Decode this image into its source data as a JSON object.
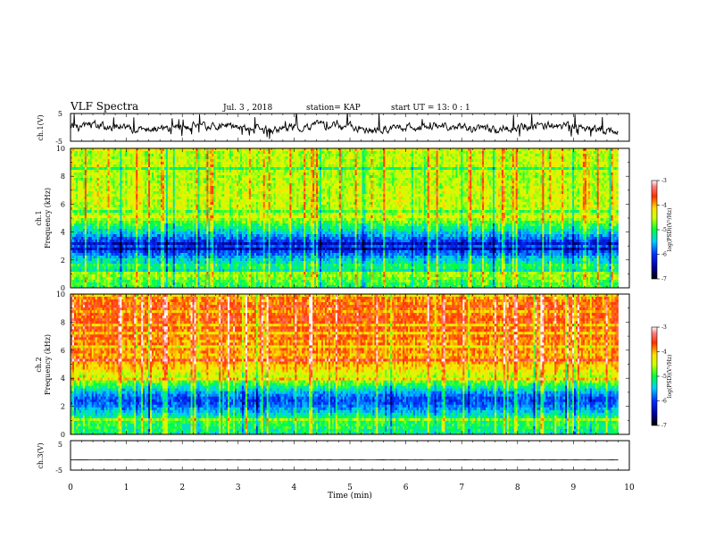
{
  "header": {
    "title": "VLF Spectra",
    "date": "Jul. 3 , 2018",
    "station": "station= KAP",
    "start": "start UT = 13: 0 : 1"
  },
  "chart_data": [
    {
      "type": "line",
      "name": "ch1-waveform",
      "ylabel": "ch.1(V)",
      "ylim": [
        -5,
        5
      ],
      "yticks": [
        "5",
        "-5"
      ],
      "xlim": [
        0,
        10
      ]
    },
    {
      "type": "heatmap",
      "name": "ch1-spectrogram",
      "ylabel": "ch.1\nFrequency (kHz)",
      "ylim": [
        0,
        10
      ],
      "yticks": [
        "10",
        "8",
        "6",
        "4",
        "2",
        "0"
      ],
      "xlim": [
        0,
        10
      ],
      "data_end_min": 9.8,
      "colorbar": {
        "label": "log(PSD)(V²/Hz)",
        "range": [
          -7,
          -3
        ],
        "ticks": [
          "-3",
          "-4",
          "-5",
          "-6",
          "-7"
        ]
      },
      "profile_log_psd": [
        {
          "f": 0.2,
          "v": -5.0
        },
        {
          "f": 0.6,
          "v": -4.8
        },
        {
          "f": 1.0,
          "v": -4.6
        },
        {
          "f": 1.5,
          "v": -5.2
        },
        {
          "f": 2.0,
          "v": -5.4
        },
        {
          "f": 2.5,
          "v": -5.9
        },
        {
          "f": 3.0,
          "v": -6.3
        },
        {
          "f": 3.5,
          "v": -5.9
        },
        {
          "f": 4.0,
          "v": -5.4
        },
        {
          "f": 4.5,
          "v": -5.0
        },
        {
          "f": 5.0,
          "v": -4.6
        },
        {
          "f": 6.0,
          "v": -4.5
        },
        {
          "f": 7.0,
          "v": -4.5
        },
        {
          "f": 8.0,
          "v": -4.6
        },
        {
          "f": 9.0,
          "v": -4.5
        },
        {
          "f": 10.0,
          "v": -4.6
        }
      ]
    },
    {
      "type": "heatmap",
      "name": "ch2-spectrogram",
      "ylabel": "ch.2\nFrequency (kHz)",
      "ylim": [
        0,
        10
      ],
      "yticks": [
        "10",
        "8",
        "6",
        "4",
        "2",
        "0"
      ],
      "xlim": [
        0,
        10
      ],
      "data_end_min": 9.8,
      "colorbar": {
        "label": "log(PSD)(V²/Hz)",
        "range": [
          -7,
          -3
        ],
        "ticks": [
          "-3",
          "-4",
          "-5",
          "-6",
          "-7"
        ]
      },
      "profile_log_psd": [
        {
          "f": 0.2,
          "v": -5.2
        },
        {
          "f": 0.6,
          "v": -5.0
        },
        {
          "f": 1.0,
          "v": -5.0
        },
        {
          "f": 1.5,
          "v": -5.4
        },
        {
          "f": 2.0,
          "v": -5.8
        },
        {
          "f": 2.5,
          "v": -6.0
        },
        {
          "f": 3.0,
          "v": -5.6
        },
        {
          "f": 3.5,
          "v": -5.0
        },
        {
          "f": 4.0,
          "v": -4.6
        },
        {
          "f": 4.5,
          "v": -4.3
        },
        {
          "f": 5.0,
          "v": -4.0
        },
        {
          "f": 6.0,
          "v": -3.9
        },
        {
          "f": 7.0,
          "v": -3.8
        },
        {
          "f": 8.0,
          "v": -3.7
        },
        {
          "f": 9.0,
          "v": -3.8
        },
        {
          "f": 10.0,
          "v": -3.9
        }
      ]
    },
    {
      "type": "line",
      "name": "ch3-waveform",
      "ylabel": "ch.3(V)",
      "ylim": [
        -5,
        5
      ],
      "yticks": [
        "5",
        "-5"
      ],
      "xlim": [
        0,
        10
      ],
      "level": -1.5
    }
  ],
  "xaxis": {
    "label": "Time (min)",
    "ticks": [
      "0",
      "1",
      "2",
      "3",
      "4",
      "5",
      "6",
      "7",
      "8",
      "9",
      "10"
    ]
  }
}
